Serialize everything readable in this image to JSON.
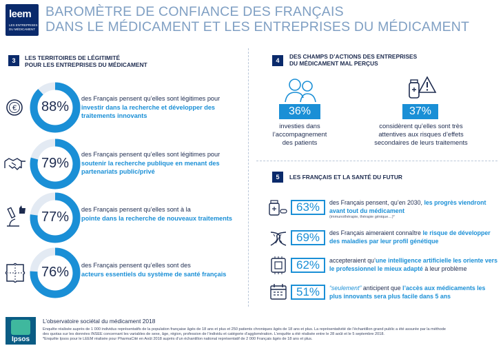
{
  "header": {
    "logo_name": "leem",
    "logo_sub": "LES ENTREPRISES DU MÉDICAMENT",
    "title_line1": "BAROMÈTRE DE CONFIANCE DES FRANÇAIS",
    "title_line2": "DANS LE MÉDICAMENT ET LES ENTREPRISES DU MÉDICAMENT"
  },
  "section3": {
    "number": "3",
    "title_line1": "LES TERRITOIRES DE LÉGITIMITÉ",
    "title_line2": "POUR LES ENTREPRISES DU MÉDICAMENT",
    "items": [
      {
        "icon": "euro-coin-icon",
        "percent": "88%",
        "value": 88,
        "text_pre": "des Français pensent qu’elles sont légitimes pour",
        "text_hl": "investir dans la recherche et développer des traitements innovants"
      },
      {
        "icon": "handshake-icon",
        "percent": "79%",
        "value": 79,
        "text_pre": "des Français pensent qu’elles sont légitimes pour",
        "text_hl": "soutenir la recherche publique en menant des partenariats public/privé"
      },
      {
        "icon": "microscope-thumbs-up-icon",
        "percent": "77%",
        "value": 77,
        "text_pre": "des Français pensent qu’elles sont à la",
        "text_hl": "pointe dans la recherche de nouveaux traitements"
      },
      {
        "icon": "puzzle-map-icon",
        "percent": "76%",
        "value": 76,
        "text_pre": "des Français pensent qu’elles sont des",
        "text_hl": "acteurs essentiels du système de santé français"
      }
    ]
  },
  "section4": {
    "number": "4",
    "title_line1": "DES CHAMPS D’ACTIONS DES ENTREPRISES",
    "title_line2": "DU MÉDICAMENT MAL PERÇUS",
    "items": [
      {
        "icon": "patients-icon",
        "percent": "36%",
        "text_line1": "investies dans",
        "text_line2": "l’accompagnement",
        "text_line3": "des patients"
      },
      {
        "icon": "medicine-warning-icon",
        "percent": "37%",
        "text_line1": "considèrent qu’elles sont très",
        "text_line2": "attentives aux risques d’effets",
        "text_line3": "secondaires de leurs traitements"
      }
    ]
  },
  "section5": {
    "number": "5",
    "title": "LES FRANÇAIS ET LA SANTÉ DU FUTUR",
    "items": [
      {
        "icon": "pill-bottle-icon",
        "percent": "63%",
        "text_pre": "des Français pensent, qu’en 2030,",
        "text_hl": "les progrès viendront avant tout du médicament",
        "text_small": "(immunothérapie, thérapie génique…)*"
      },
      {
        "icon": "dna-icon",
        "percent": "69%",
        "text_pre": "des Français aimeraient connaître",
        "text_hl": "le risque de développer des maladies par leur profil génétique"
      },
      {
        "icon": "chip-icon",
        "percent": "62%",
        "text_pre": "accepteraient qu’",
        "text_hl": "une intelligence artificielle les oriente vers le professionnel le mieux adapté",
        "text_post": "à leur problème"
      },
      {
        "icon": "calendar-icon",
        "percent": "51%",
        "text_hli": "“seulement”",
        "text_pre": "anticipent que",
        "text_hl": "l’accès aux médicaments les plus innovants sera plus facile dans 5 ans"
      }
    ]
  },
  "footer": {
    "brand": "Ipsos",
    "title": "L’observatoire sociétal du médicament 2018",
    "note_line1": "Enquête réalisée auprès de 1 000 individus représentatifs de la population française âgés de 18 ans et plus et 250 patients chroniques âgés de 18 ans et plus. La représentativité de l’échantillon grand public a été assurée par la méthode",
    "note_line2": "des quotas sur les données INSEE concernant les variables de sexe, âge, région, profession de l’individu et catégorie d’agglomération. L’enquête a été réalisée entre le 28 août et le 5 septembre 2018.",
    "note_line3": "*Enquête Ipsos pour le LEEM réalisée pour PharmaCité en Août 2018 auprès d’un échantillon national représentatif de 2 000 Français âgés de 18 ans et plus."
  },
  "colors": {
    "navy": "#0a2a6b",
    "blue": "#1a8fd6",
    "ring_track": "#e3eaf3",
    "title": "#7f9fc3"
  }
}
